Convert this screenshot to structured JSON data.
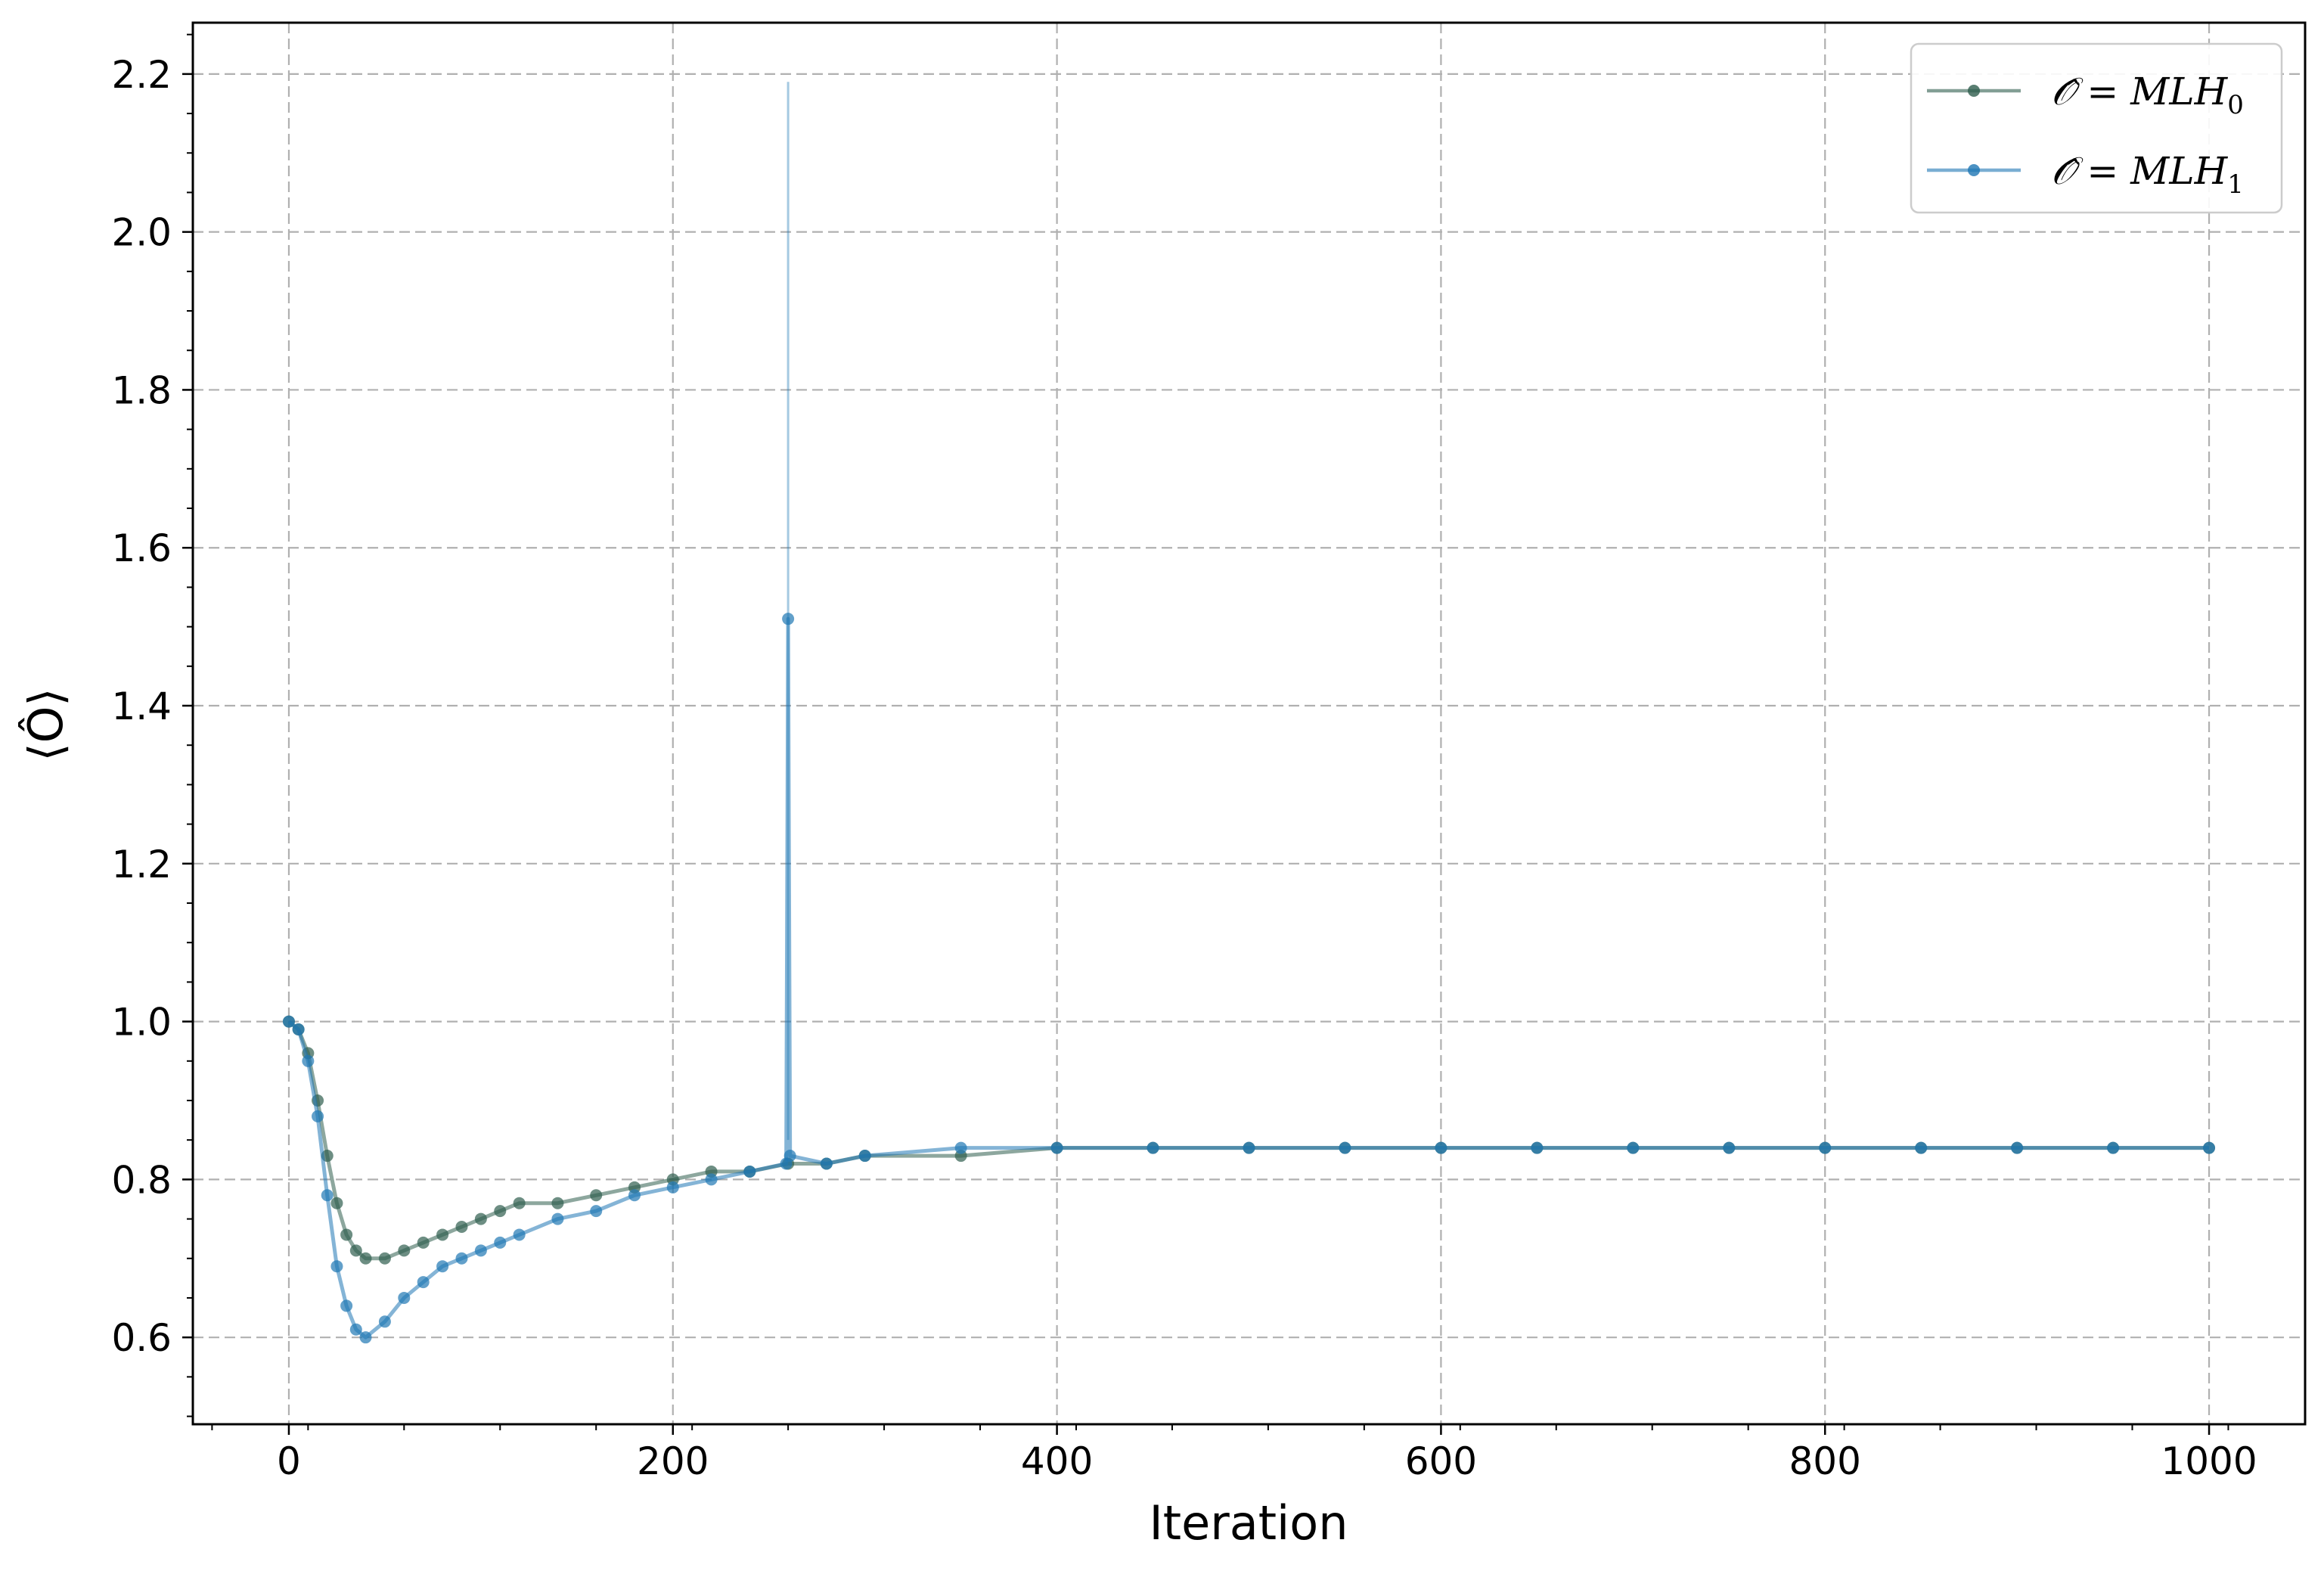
{
  "chart_data": {
    "type": "line",
    "xlabel": "Iteration",
    "ylabel": "⟨Ô⟩",
    "xlim": [
      -50,
      1050
    ],
    "ylim": [
      0.49,
      2.265
    ],
    "xticks": [
      0,
      200,
      400,
      600,
      800,
      1000
    ],
    "xtick_labels": [
      "0",
      "200",
      "400",
      "600",
      "800",
      "1000"
    ],
    "yticks": [
      0.6,
      0.8,
      1.0,
      1.2,
      1.4,
      1.6,
      1.8,
      2.0,
      2.2
    ],
    "ytick_labels": [
      "0.6",
      "0.8",
      "1.0",
      "1.2",
      "1.4",
      "1.6",
      "1.8",
      "2.0",
      "2.2"
    ],
    "grid": true,
    "legend_position": "top-right",
    "markers": true,
    "error_bars": true,
    "series": [
      {
        "name": "Ô = MLH0",
        "legend_main": "𝒪̂ = MLH",
        "legend_sub": "0",
        "color": "#2f5e4e",
        "x": [
          0,
          5,
          10,
          15,
          20,
          25,
          30,
          35,
          40,
          50,
          60,
          70,
          80,
          90,
          100,
          110,
          120,
          140,
          160,
          180,
          200,
          220,
          240,
          260,
          280,
          300,
          350,
          400,
          450,
          500,
          550,
          600,
          650,
          700,
          750,
          800,
          850,
          900,
          950,
          1000
        ],
        "values": [
          1.0,
          0.99,
          0.96,
          0.9,
          0.83,
          0.77,
          0.73,
          0.71,
          0.7,
          0.7,
          0.71,
          0.72,
          0.73,
          0.74,
          0.75,
          0.76,
          0.77,
          0.77,
          0.78,
          0.79,
          0.8,
          0.81,
          0.81,
          0.82,
          0.82,
          0.83,
          0.83,
          0.84,
          0.84,
          0.84,
          0.84,
          0.84,
          0.84,
          0.84,
          0.84,
          0.84,
          0.84,
          0.84,
          0.84,
          0.84
        ]
      },
      {
        "name": "Ô = MLH1",
        "legend_main": "𝒪̂ = MLH",
        "legend_sub": "1",
        "color": "#1f77b4",
        "x": [
          0,
          5,
          10,
          15,
          20,
          25,
          30,
          35,
          40,
          50,
          60,
          70,
          80,
          90,
          100,
          110,
          120,
          140,
          160,
          180,
          200,
          220,
          240,
          259,
          260,
          261,
          280,
          300,
          350,
          400,
          450,
          500,
          550,
          600,
          650,
          700,
          750,
          800,
          850,
          900,
          950,
          1000
        ],
        "values": [
          1.0,
          0.99,
          0.95,
          0.88,
          0.78,
          0.69,
          0.64,
          0.61,
          0.6,
          0.62,
          0.65,
          0.67,
          0.69,
          0.7,
          0.71,
          0.72,
          0.73,
          0.75,
          0.76,
          0.78,
          0.79,
          0.8,
          0.81,
          0.82,
          1.51,
          0.83,
          0.82,
          0.83,
          0.84,
          0.84,
          0.84,
          0.84,
          0.84,
          0.84,
          0.84,
          0.84,
          0.84,
          0.84,
          0.84,
          0.84,
          0.84,
          0.84
        ],
        "outlier_error": {
          "x": 260,
          "low": 0.85,
          "high": 2.19
        }
      }
    ]
  }
}
